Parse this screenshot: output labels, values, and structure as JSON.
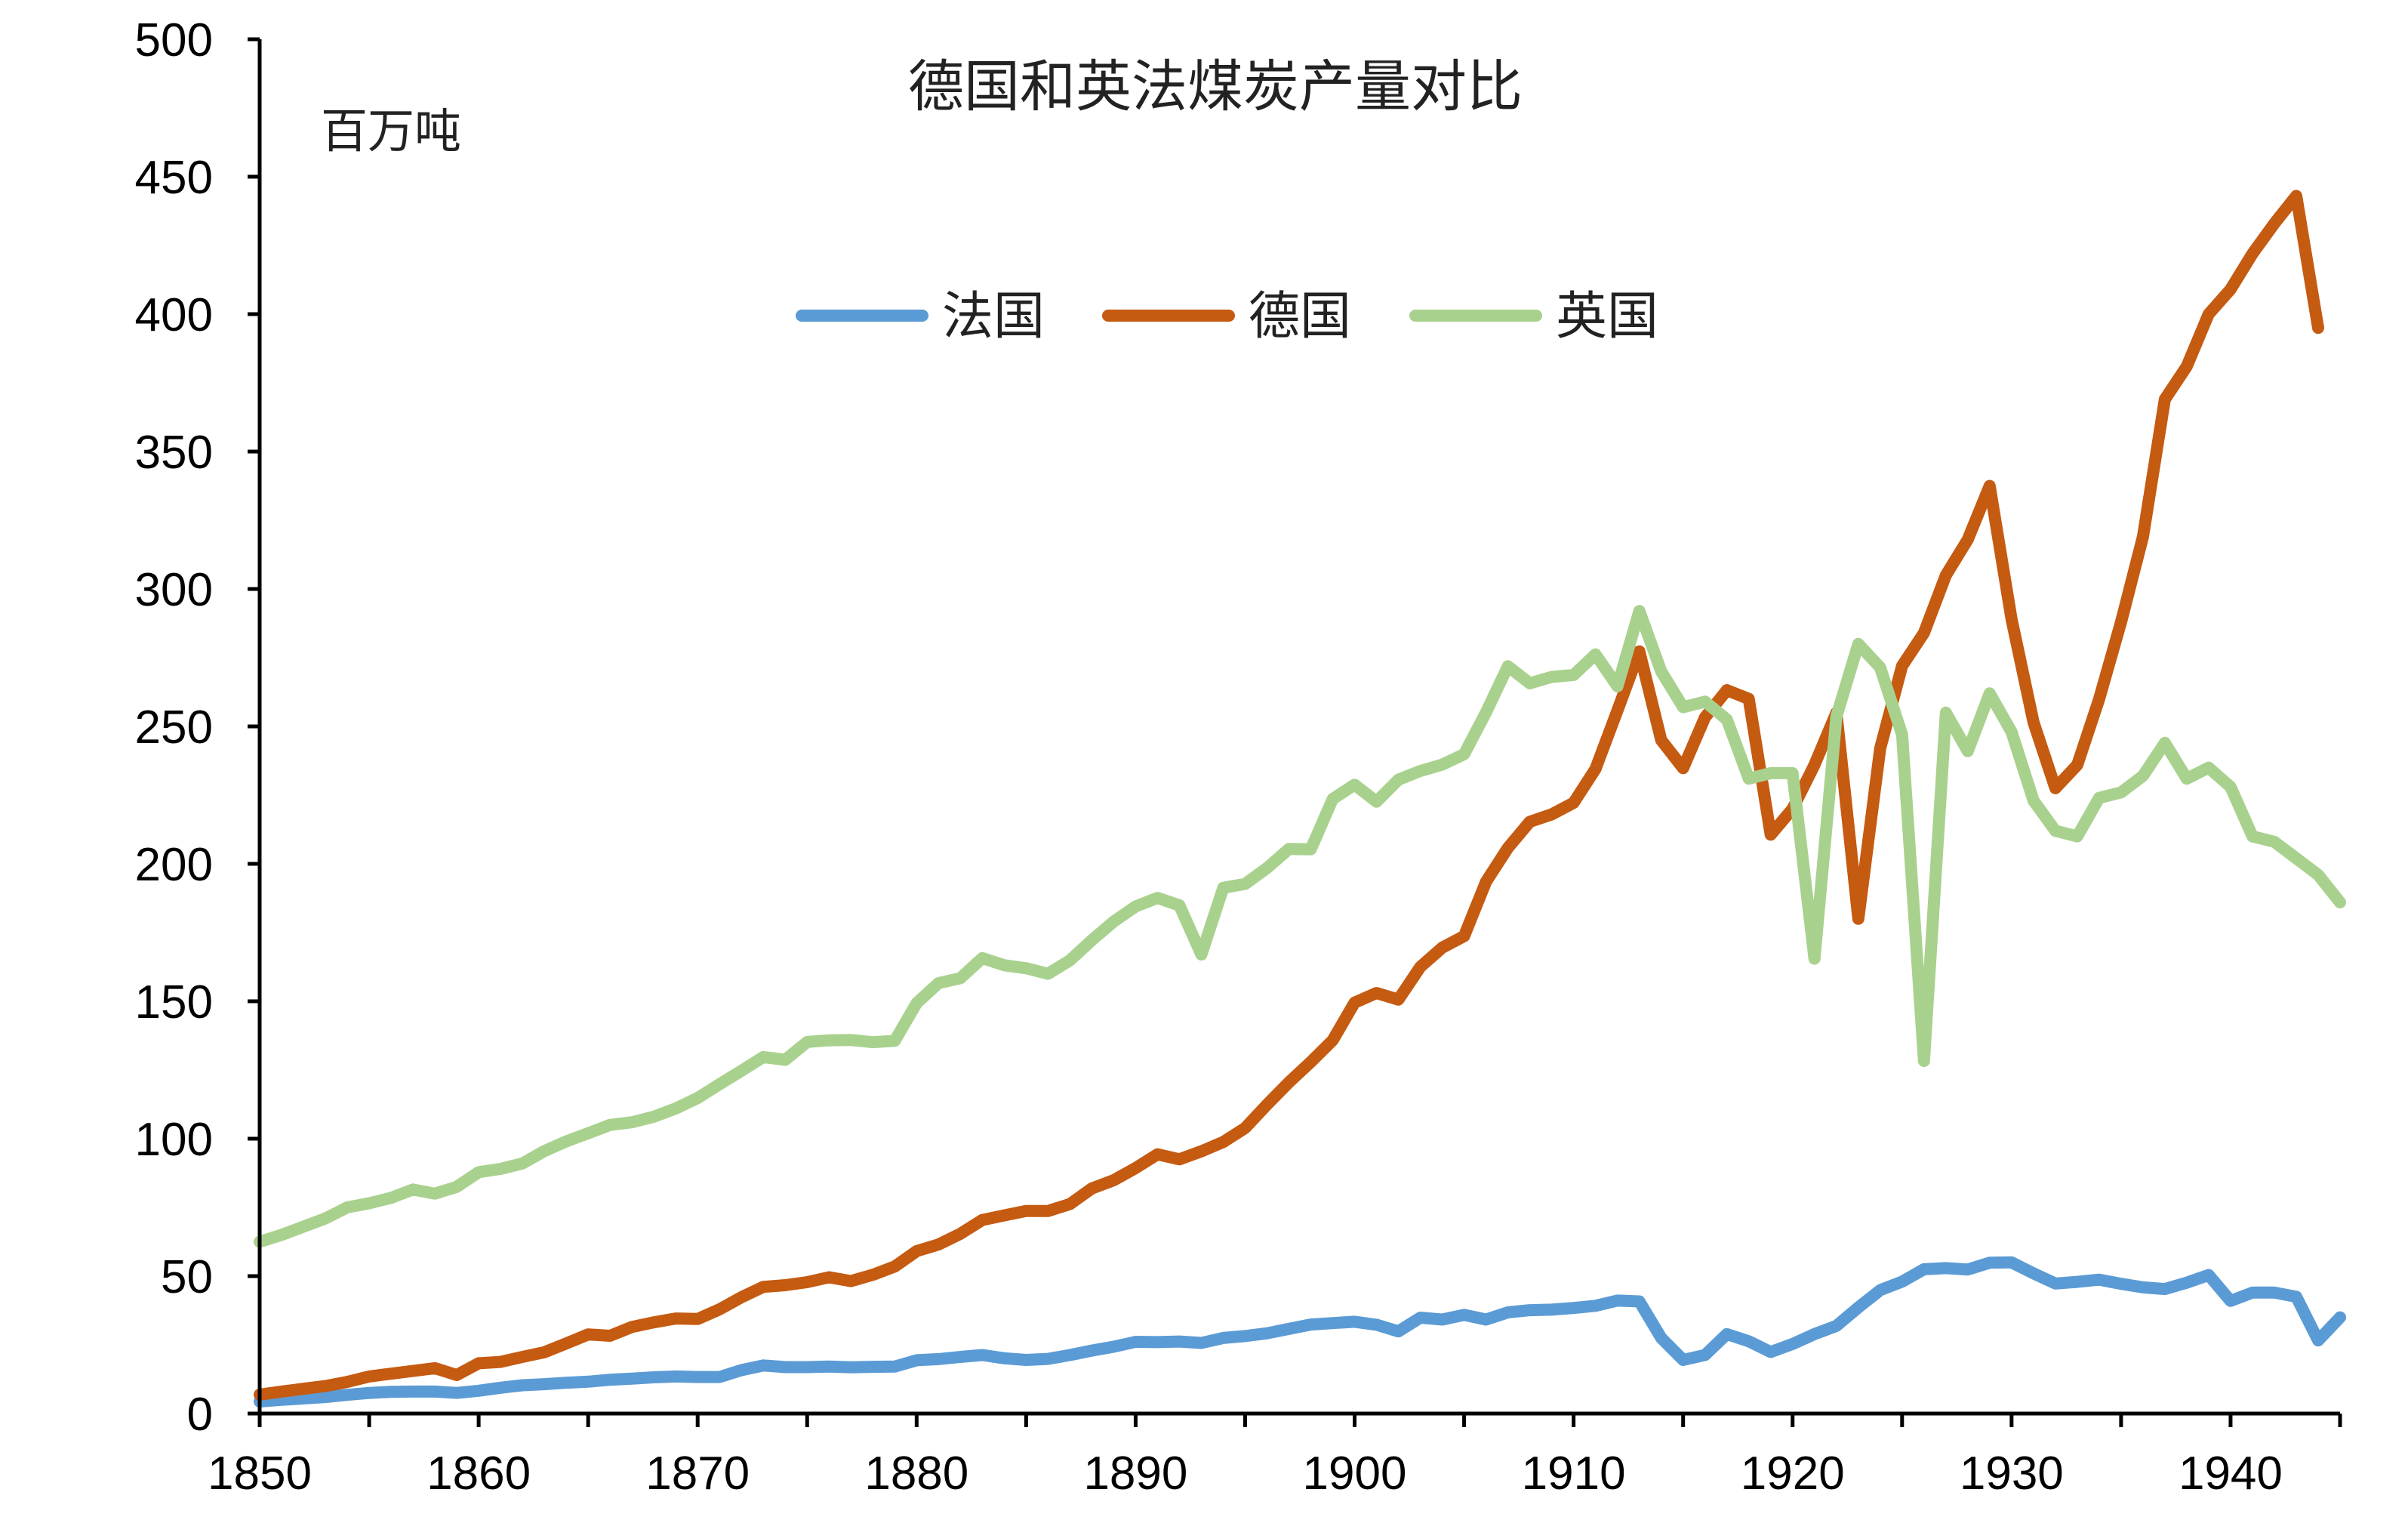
{
  "chart_data": {
    "type": "line",
    "title": "德国和英法煤炭产量对比",
    "ylabel": "百万吨",
    "xlabel": "",
    "xlim": [
      1850,
      1945
    ],
    "ylim": [
      0,
      500
    ],
    "x_ticks": [
      1850,
      1860,
      1870,
      1880,
      1890,
      1900,
      1910,
      1920,
      1930,
      1940
    ],
    "y_ticks": [
      0,
      50,
      100,
      150,
      200,
      250,
      300,
      350,
      400,
      450,
      500
    ],
    "grid": false,
    "legend_position": "top-center",
    "series": [
      {
        "name": "法国",
        "color": "#5B9BD5",
        "points": [
          [
            1850,
            4.4
          ],
          [
            1851,
            5
          ],
          [
            1852,
            5.5
          ],
          [
            1853,
            6
          ],
          [
            1854,
            6.8
          ],
          [
            1855,
            7.5
          ],
          [
            1856,
            7.9
          ],
          [
            1857,
            8
          ],
          [
            1858,
            8
          ],
          [
            1859,
            7.5
          ],
          [
            1860,
            8.3
          ],
          [
            1861,
            9.4
          ],
          [
            1862,
            10.3
          ],
          [
            1863,
            10.7
          ],
          [
            1864,
            11.2
          ],
          [
            1865,
            11.6
          ],
          [
            1866,
            12.3
          ],
          [
            1867,
            12.7
          ],
          [
            1868,
            13.2
          ],
          [
            1869,
            13.5
          ],
          [
            1870,
            13.3
          ],
          [
            1871,
            13.3
          ],
          [
            1872,
            15.8
          ],
          [
            1873,
            17.5
          ],
          [
            1874,
            16.9
          ],
          [
            1875,
            16.9
          ],
          [
            1876,
            17.1
          ],
          [
            1877,
            16.8
          ],
          [
            1878,
            17
          ],
          [
            1879,
            17.1
          ],
          [
            1880,
            19.4
          ],
          [
            1881,
            19.8
          ],
          [
            1882,
            20.6
          ],
          [
            1883,
            21.3
          ],
          [
            1884,
            20.1
          ],
          [
            1885,
            19.5
          ],
          [
            1886,
            19.9
          ],
          [
            1887,
            21.3
          ],
          [
            1888,
            22.9
          ],
          [
            1889,
            24.3
          ],
          [
            1890,
            26.1
          ],
          [
            1891,
            26
          ],
          [
            1892,
            26.2
          ],
          [
            1893,
            25.7
          ],
          [
            1894,
            27.5
          ],
          [
            1895,
            28.2
          ],
          [
            1896,
            29.2
          ],
          [
            1897,
            30.8
          ],
          [
            1898,
            32.4
          ],
          [
            1899,
            32.9
          ],
          [
            1900,
            33.4
          ],
          [
            1901,
            32.3
          ],
          [
            1902,
            29.9
          ],
          [
            1903,
            34.9
          ],
          [
            1904,
            34.2
          ],
          [
            1905,
            35.9
          ],
          [
            1906,
            34.2
          ],
          [
            1907,
            36.8
          ],
          [
            1908,
            37.6
          ],
          [
            1909,
            37.8
          ],
          [
            1910,
            38.4
          ],
          [
            1911,
            39.2
          ],
          [
            1912,
            41.1
          ],
          [
            1913,
            40.8
          ],
          [
            1914,
            27.5
          ],
          [
            1915,
            19.5
          ],
          [
            1916,
            21.3
          ],
          [
            1917,
            28.9
          ],
          [
            1918,
            26.3
          ],
          [
            1919,
            22.4
          ],
          [
            1920,
            25.3
          ],
          [
            1921,
            28.9
          ],
          [
            1922,
            31.9
          ],
          [
            1923,
            38.6
          ],
          [
            1924,
            44.9
          ],
          [
            1925,
            48
          ],
          [
            1926,
            52.5
          ],
          [
            1927,
            52.9
          ],
          [
            1928,
            52.4
          ],
          [
            1929,
            54.9
          ],
          [
            1930,
            55
          ],
          [
            1931,
            51
          ],
          [
            1932,
            47.3
          ],
          [
            1933,
            47.9
          ],
          [
            1934,
            48.7
          ],
          [
            1935,
            47.2
          ],
          [
            1936,
            45.9
          ],
          [
            1937,
            45.3
          ],
          [
            1938,
            47.6
          ],
          [
            1939,
            50.4
          ],
          [
            1940,
            41
          ],
          [
            1941,
            44
          ],
          [
            1942,
            44
          ],
          [
            1943,
            42.5
          ],
          [
            1944,
            26.6
          ],
          [
            1945,
            35
          ]
        ]
      },
      {
        "name": "德国",
        "color": "#C55A11",
        "points": [
          [
            1850,
            6.9
          ],
          [
            1851,
            8
          ],
          [
            1852,
            9
          ],
          [
            1853,
            10
          ],
          [
            1854,
            11.5
          ],
          [
            1855,
            13.5
          ],
          [
            1856,
            14.5
          ],
          [
            1857,
            15.5
          ],
          [
            1858,
            16.5
          ],
          [
            1859,
            14
          ],
          [
            1860,
            18.3
          ],
          [
            1861,
            18.8
          ],
          [
            1862,
            20.6
          ],
          [
            1863,
            22.3
          ],
          [
            1864,
            25.5
          ],
          [
            1865,
            28.8
          ],
          [
            1866,
            28.3
          ],
          [
            1867,
            31.5
          ],
          [
            1868,
            33.2
          ],
          [
            1869,
            34.6
          ],
          [
            1870,
            34.4
          ],
          [
            1871,
            37.9
          ],
          [
            1872,
            42.3
          ],
          [
            1873,
            46.1
          ],
          [
            1874,
            46.7
          ],
          [
            1875,
            47.8
          ],
          [
            1876,
            49.6
          ],
          [
            1877,
            48.2
          ],
          [
            1878,
            50.5
          ],
          [
            1879,
            53.5
          ],
          [
            1880,
            59.1
          ],
          [
            1881,
            61.5
          ],
          [
            1882,
            65.4
          ],
          [
            1883,
            70.4
          ],
          [
            1884,
            72.1
          ],
          [
            1885,
            73.7
          ],
          [
            1886,
            73.7
          ],
          [
            1887,
            76.2
          ],
          [
            1888,
            81.9
          ],
          [
            1889,
            84.9
          ],
          [
            1890,
            89.3
          ],
          [
            1891,
            94.3
          ],
          [
            1892,
            92.5
          ],
          [
            1893,
            95.4
          ],
          [
            1894,
            98.8
          ],
          [
            1895,
            103.9
          ],
          [
            1896,
            112.4
          ],
          [
            1897,
            120.5
          ],
          [
            1898,
            127.9
          ],
          [
            1899,
            135.8
          ],
          [
            1900,
            149.5
          ],
          [
            1901,
            153
          ],
          [
            1902,
            150.6
          ],
          [
            1903,
            162.5
          ],
          [
            1904,
            169.5
          ],
          [
            1905,
            173.7
          ],
          [
            1906,
            193.5
          ],
          [
            1907,
            205.8
          ],
          [
            1908,
            215.3
          ],
          [
            1909,
            218
          ],
          [
            1910,
            222.2
          ],
          [
            1911,
            234.5
          ],
          [
            1912,
            255.8
          ],
          [
            1913,
            277.3
          ],
          [
            1914,
            245
          ],
          [
            1915,
            234.8
          ],
          [
            1916,
            253.3
          ],
          [
            1917,
            263.2
          ],
          [
            1918,
            260
          ],
          [
            1919,
            210.6
          ],
          [
            1920,
            220
          ],
          [
            1921,
            236
          ],
          [
            1922,
            255
          ],
          [
            1923,
            180
          ],
          [
            1924,
            242
          ],
          [
            1925,
            272
          ],
          [
            1926,
            284
          ],
          [
            1927,
            305
          ],
          [
            1928,
            318
          ],
          [
            1929,
            337.5
          ],
          [
            1930,
            289
          ],
          [
            1931,
            251.5
          ],
          [
            1932,
            227.5
          ],
          [
            1933,
            236
          ],
          [
            1934,
            260
          ],
          [
            1935,
            288
          ],
          [
            1936,
            319
          ],
          [
            1937,
            369
          ],
          [
            1938,
            381
          ],
          [
            1939,
            400
          ],
          [
            1940,
            409
          ],
          [
            1941,
            422
          ],
          [
            1942,
            433
          ],
          [
            1943,
            443
          ],
          [
            1944,
            395
          ]
        ]
      },
      {
        "name": "英国",
        "color": "#A9D18E",
        "points": [
          [
            1850,
            62.5
          ],
          [
            1851,
            65
          ],
          [
            1852,
            68
          ],
          [
            1853,
            71
          ],
          [
            1854,
            75
          ],
          [
            1855,
            76.5
          ],
          [
            1856,
            78.5
          ],
          [
            1857,
            81.5
          ],
          [
            1858,
            80
          ],
          [
            1859,
            82.5
          ],
          [
            1860,
            87.8
          ],
          [
            1861,
            89
          ],
          [
            1862,
            91
          ],
          [
            1863,
            95.5
          ],
          [
            1864,
            99
          ],
          [
            1865,
            102
          ],
          [
            1866,
            105
          ],
          [
            1867,
            106
          ],
          [
            1868,
            108
          ],
          [
            1869,
            111
          ],
          [
            1870,
            114.8
          ],
          [
            1871,
            119.8
          ],
          [
            1872,
            124.7
          ],
          [
            1873,
            129.7
          ],
          [
            1874,
            128.7
          ],
          [
            1875,
            135.2
          ],
          [
            1876,
            135.8
          ],
          [
            1877,
            135.9
          ],
          [
            1878,
            135.1
          ],
          [
            1879,
            135.6
          ],
          [
            1880,
            149.3
          ],
          [
            1881,
            156.6
          ],
          [
            1882,
            158.4
          ],
          [
            1883,
            165.7
          ],
          [
            1884,
            163.1
          ],
          [
            1885,
            162
          ],
          [
            1886,
            160
          ],
          [
            1887,
            164.9
          ],
          [
            1888,
            172.2
          ],
          [
            1889,
            179
          ],
          [
            1890,
            184.5
          ],
          [
            1891,
            187.6
          ],
          [
            1892,
            184.9
          ],
          [
            1893,
            167
          ],
          [
            1894,
            191.3
          ],
          [
            1895,
            192.7
          ],
          [
            1896,
            198.5
          ],
          [
            1897,
            205.4
          ],
          [
            1898,
            205.3
          ],
          [
            1899,
            223.6
          ],
          [
            1900,
            228.8
          ],
          [
            1901,
            222.6
          ],
          [
            1902,
            230.6
          ],
          [
            1903,
            233.8
          ],
          [
            1904,
            236.1
          ],
          [
            1905,
            239.9
          ],
          [
            1906,
            255.1
          ],
          [
            1907,
            271.9
          ],
          [
            1908,
            265.7
          ],
          [
            1909,
            268
          ],
          [
            1910,
            268.7
          ],
          [
            1911,
            276.2
          ],
          [
            1912,
            264.6
          ],
          [
            1913,
            292
          ],
          [
            1914,
            270
          ],
          [
            1915,
            257
          ],
          [
            1916,
            259
          ],
          [
            1917,
            252.5
          ],
          [
            1918,
            231
          ],
          [
            1919,
            233
          ],
          [
            1920,
            233
          ],
          [
            1921,
            165.5
          ],
          [
            1922,
            253.6
          ],
          [
            1923,
            280
          ],
          [
            1924,
            271.4
          ],
          [
            1925,
            247
          ],
          [
            1926,
            128.3
          ],
          [
            1927,
            255
          ],
          [
            1928,
            241
          ],
          [
            1929,
            262
          ],
          [
            1930,
            248
          ],
          [
            1931,
            223
          ],
          [
            1932,
            212
          ],
          [
            1933,
            210
          ],
          [
            1934,
            224
          ],
          [
            1935,
            226
          ],
          [
            1936,
            232
          ],
          [
            1937,
            244
          ],
          [
            1938,
            231
          ],
          [
            1939,
            235
          ],
          [
            1940,
            228
          ],
          [
            1941,
            210
          ],
          [
            1942,
            208
          ],
          [
            1943,
            202
          ],
          [
            1944,
            196
          ],
          [
            1945,
            186
          ]
        ]
      }
    ]
  }
}
